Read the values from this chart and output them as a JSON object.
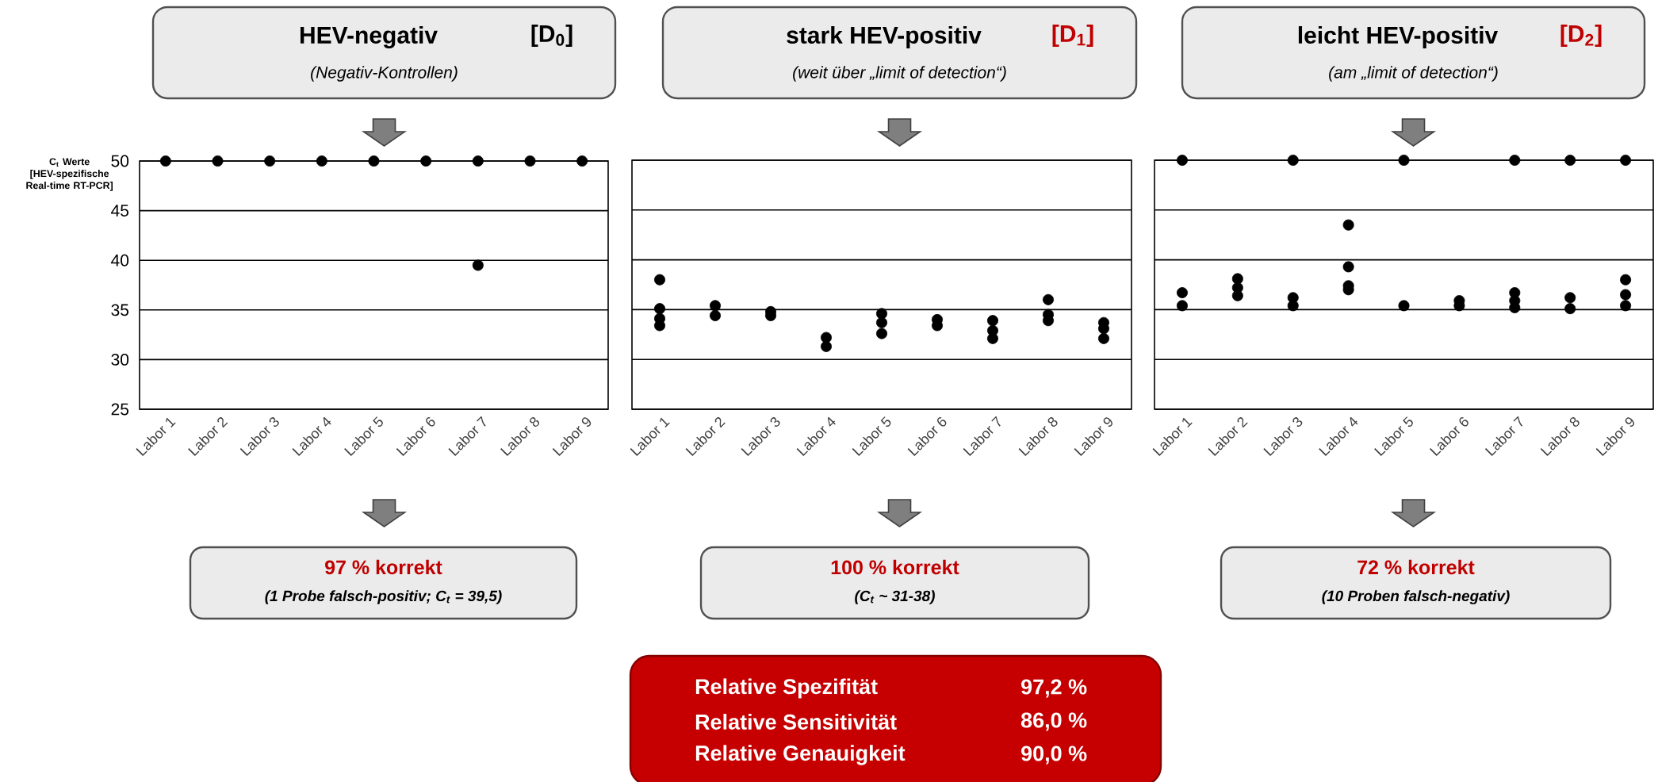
{
  "chart_data": [
    {
      "type": "scatter",
      "title": "HEV-negativ",
      "subtitle": "(Negativ-Kontrollen)",
      "ylabel": "C$_{t}$ Werte [HEV-spezifische Real-time RT-PCR]",
      "categories": [
        "Labor 1",
        "Labor 2",
        "Labor 3",
        "Labor 4",
        "Labor 5",
        "Labor 6",
        "Labor 7",
        "Labor 8",
        "Labor 9"
      ],
      "series": [
        {
          "color": "#000000",
          "x": [
            "Labor 1",
            "Labor 2",
            "Labor 3",
            "Labor 4",
            "Labor 5",
            "Labor 6",
            "Labor 7",
            "Labor 7",
            "Labor 8",
            "Labor 9"
          ],
          "values": [
            50,
            50,
            50,
            50,
            50,
            50,
            50,
            39.5,
            50,
            50
          ]
        }
      ],
      "ylim": [
        25,
        50
      ],
      "yticks": [
        25,
        30,
        35,
        40,
        45,
        50
      ],
      "grid": "y",
      "marker": "circle",
      "annotations": [
        "[D$_{0}$]",
        "97 % korrekt",
        "(1 Probe falsch-positiv; C$_{t}$ = 39,5)"
      ]
    },
    {
      "type": "scatter",
      "title": "stark HEV-positiv",
      "subtitle": "(weit über „limit of detection“)",
      "categories": [
        "Labor 1",
        "Labor 2",
        "Labor 3",
        "Labor 4",
        "Labor 5",
        "Labor 6",
        "Labor 7",
        "Labor 8",
        "Labor 9"
      ],
      "series": [
        {
          "color": "#000000",
          "x": [
            "Labor 1",
            "Labor 1",
            "Labor 1",
            "Labor 1",
            "Labor 2",
            "Labor 2",
            "Labor 3",
            "Labor 3",
            "Labor 4",
            "Labor 4",
            "Labor 5",
            "Labor 5",
            "Labor 5",
            "Labor 6",
            "Labor 6",
            "Labor 7",
            "Labor 7",
            "Labor 7",
            "Labor 8",
            "Labor 8",
            "Labor 8",
            "Labor 9",
            "Labor 9",
            "Labor 9"
          ],
          "values": [
            38.0,
            35.1,
            34.1,
            33.4,
            35.4,
            34.4,
            34.8,
            34.4,
            32.2,
            31.3,
            34.6,
            33.7,
            32.6,
            34.0,
            33.4,
            33.9,
            32.9,
            32.1,
            36.0,
            34.5,
            33.9,
            33.7,
            33.1,
            32.1
          ]
        }
      ],
      "ylim": [
        25,
        50
      ],
      "yticks": [
        25,
        30,
        35,
        40,
        45,
        50
      ],
      "grid": "y",
      "marker": "circle",
      "tick_labels": "x",
      "annotations": [
        "[D$_{1}$]",
        "100 % korrekt",
        "(C$_{t}$ ~ 31-38)",
        "Relative Spezifität",
        "97,2 %",
        "Relative Sensitivität",
        "86,0 %",
        "Relative Genauigkeit",
        "90,0 %"
      ]
    },
    {
      "type": "scatter",
      "title": "leicht HEV-positiv",
      "subtitle": "(am „limit of detection“)",
      "categories": [
        "Labor 1",
        "Labor 2",
        "Labor 3",
        "Labor 4",
        "Labor 5",
        "Labor 6",
        "Labor 7",
        "Labor 8",
        "Labor 9"
      ],
      "series": [
        {
          "color": "#000000",
          "x": [
            "Labor 1",
            "Labor 1",
            "Labor 1",
            "Labor 2",
            "Labor 2",
            "Labor 2",
            "Labor 3",
            "Labor 3",
            "Labor 3",
            "Labor 4",
            "Labor 4",
            "Labor 4",
            "Labor 4",
            "Labor 5",
            "Labor 5",
            "Labor 6",
            "Labor 6",
            "Labor 7",
            "Labor 7",
            "Labor 7",
            "Labor 7",
            "Labor 8",
            "Labor 8",
            "Labor 8",
            "Labor 9",
            "Labor 9",
            "Labor 9",
            "Labor 9"
          ],
          "values": [
            50,
            36.7,
            35.4,
            38.1,
            37.2,
            36.4,
            50,
            36.2,
            35.4,
            43.5,
            39.3,
            37.4,
            37.0,
            50,
            35.4,
            35.9,
            35.4,
            50,
            36.7,
            35.9,
            35.2,
            50,
            36.2,
            35.1,
            50,
            38.0,
            36.5,
            35.4
          ]
        }
      ],
      "ylim": [
        25,
        50
      ],
      "yticks": [
        25,
        30,
        35,
        40,
        45,
        50
      ],
      "grid": "y",
      "marker": "circle",
      "tick_labels": "x",
      "annotations": [
        "[D$_{2}$]",
        "72 % korrekt",
        "(10 Proben falsch-negativ)"
      ]
    }
  ]
}
